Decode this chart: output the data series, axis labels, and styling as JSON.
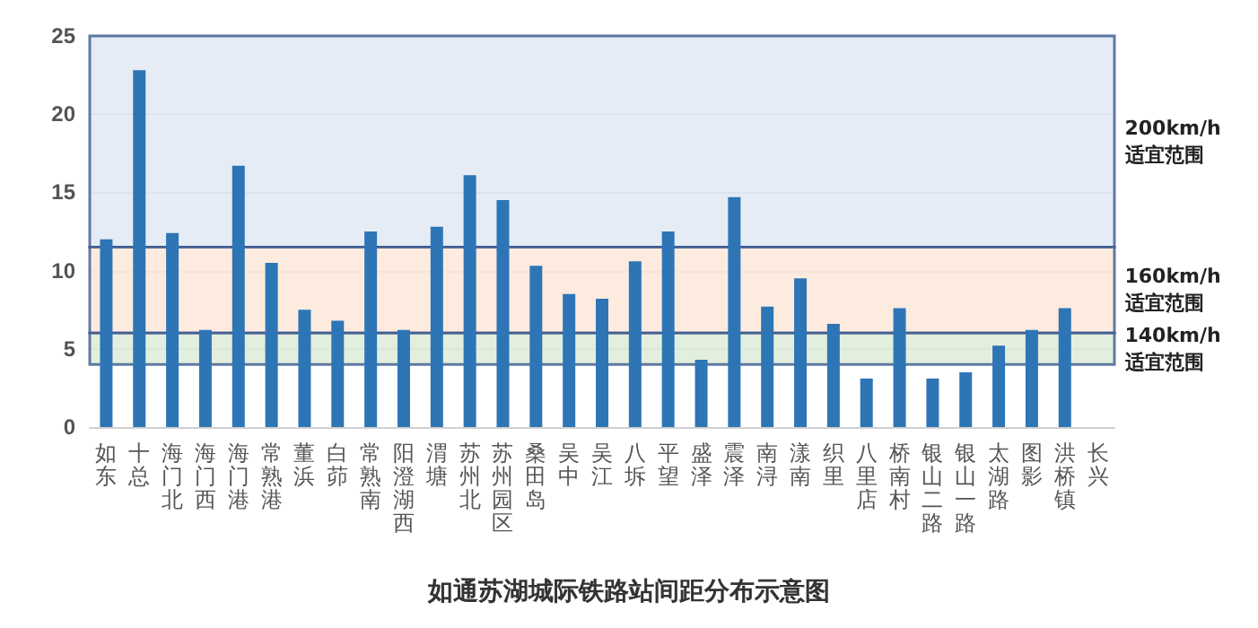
{
  "chart_data": {
    "type": "bar",
    "title": "如通苏湖城际铁路站间距分布示意图",
    "categories": [
      "如东",
      "十总",
      "海门北",
      "海门西",
      "海门港",
      "常熟港",
      "董浜",
      "白茆",
      "常熟南",
      "阳澄湖西",
      "渭塘",
      "苏州北",
      "苏州园区",
      "桑田岛",
      "吴中",
      "吴江",
      "八坼",
      "平望",
      "盛泽",
      "震泽",
      "南浔",
      "漾南",
      "织里",
      "八里店",
      "桥南村",
      "银山二路",
      "银山一路",
      "太湖路",
      "图影",
      "洪桥镇",
      "长兴"
    ],
    "values": [
      12.0,
      22.8,
      12.4,
      6.2,
      16.7,
      10.5,
      7.5,
      6.8,
      12.5,
      6.2,
      12.8,
      16.1,
      14.5,
      10.3,
      8.5,
      8.2,
      10.6,
      12.5,
      4.3,
      14.7,
      7.7,
      9.5,
      6.6,
      3.1,
      7.6,
      3.1,
      3.5,
      5.2,
      6.2,
      7.6,
      null
    ],
    "color": "#2e75b6",
    "ylim": [
      0,
      25
    ],
    "yticks": [
      0,
      5,
      10,
      15,
      20,
      25
    ],
    "grid": "y",
    "bands": [
      {
        "axis": "y",
        "from": 11.5,
        "to": 25,
        "label": "200km/h 适宜范围",
        "color": "#dce6f2"
      },
      {
        "axis": "y",
        "from": 6,
        "to": 11.5,
        "label": "160km/h 适宜范围",
        "color": "#fce4d6"
      },
      {
        "axis": "y",
        "from": 4,
        "to": 6,
        "label": "140km/h 适宜范围",
        "color": "#d9ead3"
      }
    ]
  }
}
